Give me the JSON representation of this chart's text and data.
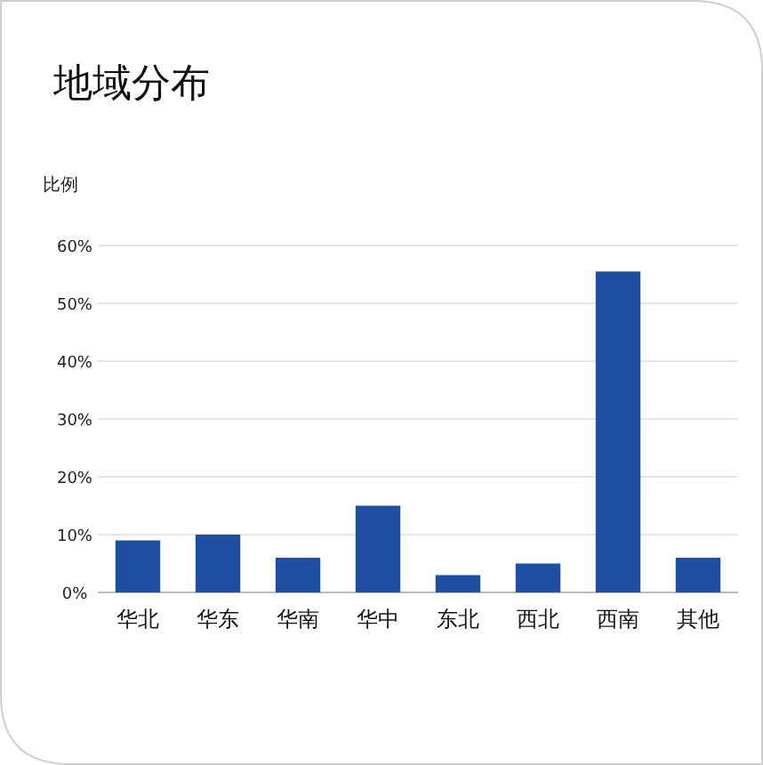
{
  "chart_data": {
    "type": "bar",
    "title": "地域分布",
    "ylabel": "比例",
    "categories": [
      "华北",
      "华东",
      "华南",
      "华中",
      "东北",
      "西北",
      "西南",
      "其他"
    ],
    "values": [
      9,
      10,
      6,
      15,
      3,
      5,
      55.5,
      6
    ],
    "color": "#1f4fa3",
    "ylim": [
      0,
      60
    ],
    "yticks": [
      {
        "value": 0,
        "label": "0%"
      },
      {
        "value": 10,
        "label": "10%"
      },
      {
        "value": 20,
        "label": "20%"
      },
      {
        "value": 30,
        "label": "30%"
      },
      {
        "value": 40,
        "label": "40%"
      },
      {
        "value": 50,
        "label": "50%"
      },
      {
        "value": 60,
        "label": "60%"
      }
    ],
    "grid": "y"
  }
}
